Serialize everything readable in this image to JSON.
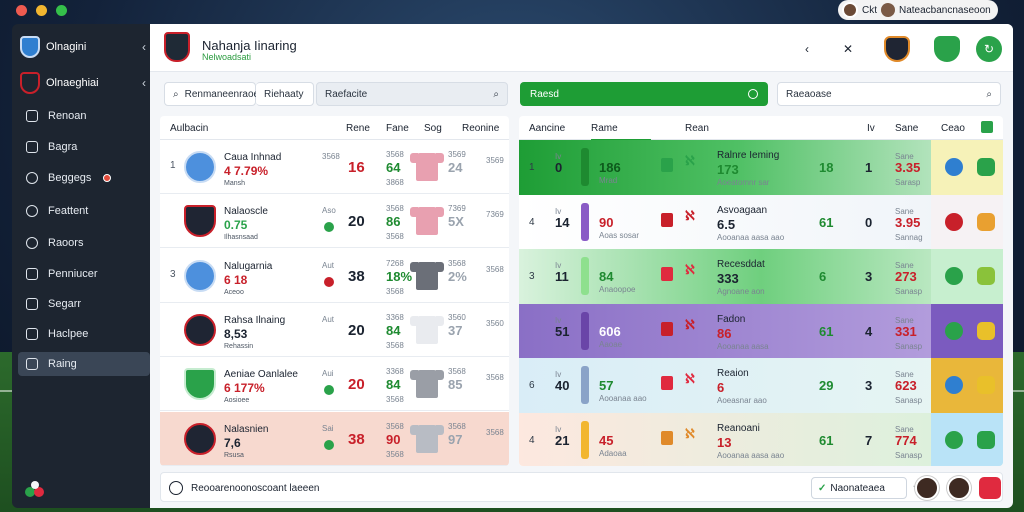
{
  "window": {
    "user_label": "Nateacbancnaseoon",
    "user_prefix": "Ckt"
  },
  "sidebar": {
    "heads": [
      {
        "label": "Olnagini",
        "chevron": "‹"
      },
      {
        "label": "Olnaeghiai",
        "chevron": "‹"
      }
    ],
    "items": [
      {
        "label": "Renoan",
        "icon": "document-icon"
      },
      {
        "label": "Bagra",
        "icon": "calendar-icon"
      },
      {
        "label": "Beggegs",
        "icon": "chat-icon"
      },
      {
        "label": "Feattent",
        "icon": "grid-icon"
      },
      {
        "label": "Raoors",
        "icon": "gear-icon"
      },
      {
        "label": "Penniucer",
        "icon": "list-icon"
      },
      {
        "label": "Segarr",
        "icon": "shield-icon"
      },
      {
        "label": "Haclpee",
        "icon": "team-icon"
      },
      {
        "label": "Raing",
        "icon": "square-icon"
      }
    ]
  },
  "header": {
    "title": "Nahanja Iinaring",
    "subtitle": "Nelwoadsati"
  },
  "search_left": {
    "chip": "Renmaneenraoe",
    "filter": "Riehaaty",
    "placeholder": "Raefacite"
  },
  "green_bar": {
    "label": "Raesd"
  },
  "search_right": {
    "placeholder": "Raeaoase"
  },
  "left_table": {
    "headers": [
      "Aulbacin",
      "Rene",
      "Fane",
      "Sog",
      "Reonine"
    ],
    "rows": [
      {
        "num": "1",
        "name": "Caua Inhnad",
        "stat": "4 7.79%",
        "sub": "Mansh",
        "big": "16",
        "mini_a": "3568",
        "mid": "64",
        "mini_b": "3568",
        "mini_c": "3868",
        "right": "24",
        "mini_d": "3569"
      },
      {
        "num": "",
        "name": "Nalaoscle",
        "stat": "0.75",
        "sub": "Ilhasnsaad",
        "big": "20",
        "mini_a": "Aso",
        "mid": "86",
        "mini_b": "3568",
        "mini_c": "3568",
        "right": "5X",
        "mini_d": "7369"
      },
      {
        "num": "3",
        "name": "Nalugarnia",
        "stat": "6 18",
        "sub": "Aceoo",
        "big": "38",
        "mini_a": "Aut",
        "mid": "18%",
        "mini_b": "7268",
        "mini_c": "3568",
        "right": "2%",
        "mini_d": "3568"
      },
      {
        "num": "",
        "name": "Rahsa Ilnaing",
        "stat": "8,53",
        "sub": "Rehassin",
        "big": "20",
        "mini_a": "Aut",
        "mid": "84",
        "mini_b": "3368",
        "mini_c": "3568",
        "right": "37",
        "mini_d": "3560"
      },
      {
        "num": "",
        "name": "Aeniae Oanlalee",
        "stat": "6 177%",
        "sub": "Aosioee",
        "big": "20",
        "mini_a": "Aui",
        "mid": "84",
        "mini_b": "3368",
        "mini_c": "3568",
        "right": "85",
        "mini_d": "3568"
      },
      {
        "num": "",
        "name": "Nalasnien",
        "stat": "7,6",
        "sub": "Rsusa",
        "big": "38",
        "mini_a": "Sai",
        "mid": "90",
        "mini_b": "3568",
        "mini_c": "3568",
        "right": "97",
        "mini_d": "3568"
      }
    ]
  },
  "right_table": {
    "headers": [
      "Aancine",
      "Rame",
      "Rean",
      "Iv",
      "Sane",
      "Ceao"
    ],
    "rows": [
      {
        "num": "1",
        "a": "0",
        "b": "186",
        "bsub": "Mrad",
        "name": "Ralnre Ieming",
        "val": "173",
        "vsub": "Aoeatomnr sar",
        "x": "18",
        "y": "1",
        "z": "3.35",
        "zsub": "Sarasp"
      },
      {
        "num": "4",
        "a": "14",
        "b": "90",
        "bsub": "Aoas sosar",
        "name": "Asvoagaan",
        "val": "6.5",
        "vsub": "Aooanaa aasa aao",
        "x": "61",
        "y": "0",
        "z": "3.95",
        "zsub": "Sannag"
      },
      {
        "num": "3",
        "a": "11",
        "b": "84",
        "bsub": "Anaoopoe",
        "name": "Recesddat",
        "val": "333",
        "vsub": "Agnoane aon",
        "x": "6",
        "y": "3",
        "z": "273",
        "zsub": "Sanasp"
      },
      {
        "num": "",
        "a": "51",
        "b": "606",
        "bsub": "Aaoae",
        "name": "Fadon",
        "val": "86",
        "vsub": "Aooanaa aasa",
        "x": "61",
        "y": "4",
        "z": "331",
        "zsub": "Sanasp"
      },
      {
        "num": "6",
        "a": "40",
        "b": "57",
        "bsub": "Aooanaa aao",
        "name": "Reaion",
        "val": "6",
        "vsub": "Aoeasnar aao",
        "x": "29",
        "y": "3",
        "z": "623",
        "zsub": "Sanasp"
      },
      {
        "num": "4",
        "a": "21",
        "b": "45",
        "bsub": "Adaoaa",
        "name": "Reanoani",
        "val": "13",
        "vsub": "Aooanaa aasa aao",
        "x": "61",
        "y": "7",
        "z": "774",
        "zsub": "Sanasp"
      }
    ]
  },
  "footer": {
    "text": "Reooarenoonoscoant laeeen",
    "filter": "Naonateaea"
  },
  "colors": {
    "accent_green": "#1e9d35",
    "danger_red": "#e02a3f",
    "sidebar_bg": "#1d2530"
  }
}
